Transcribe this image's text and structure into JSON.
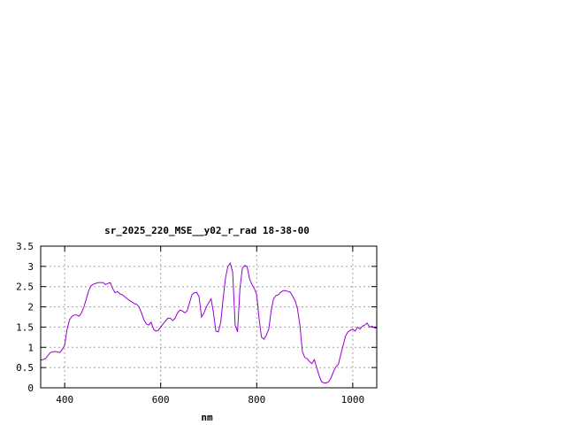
{
  "chart_data": {
    "type": "line",
    "title": "sr_2025_220_MSE__y02_r_rad 18-38-00",
    "xlabel": "nm",
    "ylabel": "",
    "xlim": [
      350,
      1050
    ],
    "ylim": [
      0,
      3.5
    ],
    "x_ticks": [
      400,
      600,
      800,
      1000
    ],
    "x_tick_labels": [
      "400",
      "600",
      "800",
      "1000"
    ],
    "y_ticks": [
      0,
      0.5,
      1,
      1.5,
      2,
      2.5,
      3,
      3.5
    ],
    "y_tick_labels": [
      "0",
      "0.5",
      "1",
      "1.5",
      "2",
      "2.5",
      "3",
      "3.5"
    ],
    "grid": true,
    "series_color": "#9400d3",
    "series": [
      {
        "x": [
          350,
          360,
          370,
          380,
          390,
          395,
          400,
          405,
          410,
          415,
          420,
          425,
          430,
          435,
          440,
          445,
          450,
          455,
          460,
          470,
          480,
          485,
          490,
          495,
          500,
          505,
          510,
          515,
          520,
          525,
          530,
          535,
          540,
          545,
          550,
          555,
          560,
          565,
          570,
          575,
          580,
          585,
          590,
          595,
          600,
          605,
          610,
          615,
          620,
          625,
          630,
          635,
          640,
          645,
          650,
          655,
          660,
          665,
          670,
          675,
          680,
          685,
          690,
          695,
          700,
          705,
          710,
          715,
          720,
          725,
          730,
          735,
          740,
          745,
          750,
          755,
          760,
          765,
          770,
          775,
          780,
          785,
          790,
          795,
          800,
          805,
          810,
          815,
          820,
          825,
          830,
          835,
          840,
          845,
          850,
          855,
          860,
          865,
          870,
          875,
          880,
          885,
          890,
          895,
          900,
          905,
          910,
          915,
          920,
          925,
          930,
          935,
          940,
          945,
          950,
          955,
          960,
          965,
          970,
          975,
          980,
          985,
          990,
          995,
          1000,
          1005,
          1010,
          1015,
          1020,
          1025,
          1030,
          1035,
          1040,
          1045,
          1050
        ],
        "values": [
          0.68,
          0.72,
          0.87,
          0.9,
          0.87,
          0.95,
          1.05,
          1.45,
          1.68,
          1.76,
          1.8,
          1.8,
          1.77,
          1.85,
          2.0,
          2.2,
          2.4,
          2.52,
          2.56,
          2.6,
          2.6,
          2.55,
          2.58,
          2.6,
          2.45,
          2.35,
          2.38,
          2.32,
          2.3,
          2.25,
          2.2,
          2.16,
          2.12,
          2.08,
          2.06,
          2.0,
          1.85,
          1.68,
          1.58,
          1.55,
          1.62,
          1.45,
          1.4,
          1.42,
          1.5,
          1.58,
          1.65,
          1.72,
          1.72,
          1.66,
          1.72,
          1.85,
          1.92,
          1.9,
          1.85,
          1.9,
          2.1,
          2.3,
          2.35,
          2.36,
          2.25,
          1.75,
          1.85,
          2.0,
          2.1,
          2.2,
          1.85,
          1.4,
          1.38,
          1.62,
          2.2,
          2.72,
          3.0,
          3.08,
          2.85,
          1.55,
          1.38,
          2.45,
          2.95,
          3.02,
          3.0,
          2.7,
          2.55,
          2.45,
          2.3,
          1.7,
          1.25,
          1.2,
          1.3,
          1.45,
          1.9,
          2.2,
          2.28,
          2.3,
          2.36,
          2.4,
          2.4,
          2.38,
          2.36,
          2.26,
          2.15,
          1.95,
          1.55,
          0.9,
          0.75,
          0.72,
          0.65,
          0.6,
          0.7,
          0.5,
          0.3,
          0.15,
          0.12,
          0.12,
          0.15,
          0.25,
          0.4,
          0.52,
          0.58,
          0.82,
          1.05,
          1.28,
          1.38,
          1.42,
          1.45,
          1.4,
          1.5,
          1.45,
          1.52,
          1.55,
          1.6,
          1.5,
          1.52,
          1.48,
          1.47
        ]
      }
    ]
  }
}
